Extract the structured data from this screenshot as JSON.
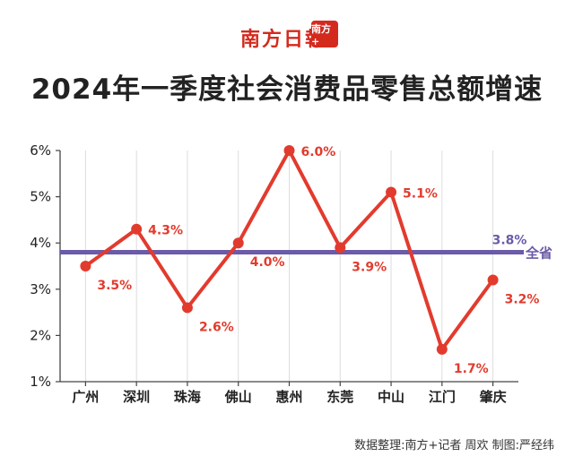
{
  "header": {
    "logo_text": "南方日報",
    "logo_badge": "南方+"
  },
  "footer": {
    "credit": "数据整理:南方+记者 周欢  制图:严经纬"
  },
  "chart_data": {
    "type": "line",
    "title": "2024年一季度社会消费品零售总额增速",
    "xlabel": "",
    "ylabel": "",
    "categories": [
      "广州",
      "深圳",
      "珠海",
      "佛山",
      "惠州",
      "东莞",
      "中山",
      "江门",
      "肇庆"
    ],
    "series": [
      {
        "values": [
          3.5,
          4.3,
          2.6,
          4.0,
          6.0,
          3.9,
          5.1,
          1.7,
          3.2
        ],
        "labels": [
          "3.5%",
          "4.3%",
          "2.6%",
          "4.0%",
          "6.0%",
          "3.9%",
          "5.1%",
          "1.7%",
          "3.2%"
        ]
      }
    ],
    "reference_line": {
      "name": "全省",
      "value": 3.8,
      "label": "3.8%"
    },
    "ylim": [
      1,
      6
    ],
    "yticks": [
      "1%",
      "2%",
      "3%",
      "4%",
      "5%",
      "6%"
    ],
    "grid": "vertical",
    "colors": {
      "line": "#e23b2e",
      "reference": "#6b5ba8",
      "grid": "#dcdcdc"
    }
  }
}
